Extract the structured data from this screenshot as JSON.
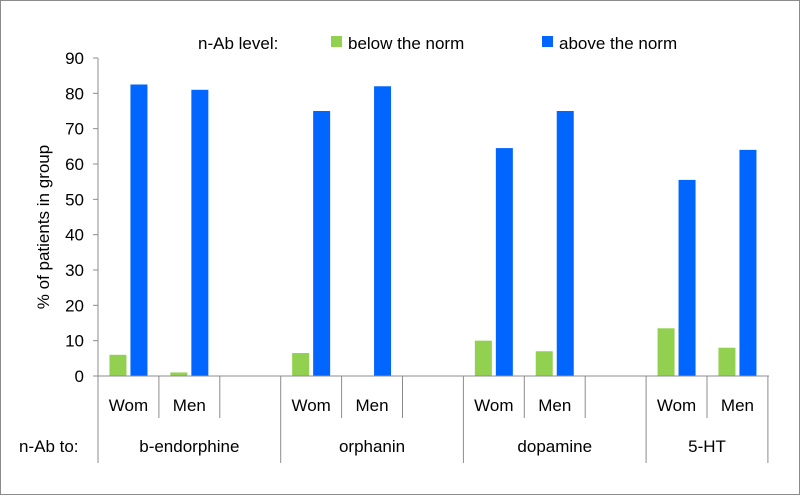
{
  "chart_data": {
    "type": "bar",
    "legend": {
      "title": "n-Ab level:",
      "placement": "top"
    },
    "ylabel": "% of patients  in   group",
    "ylim": [
      0,
      90
    ],
    "yticks": [
      0,
      10,
      20,
      30,
      40,
      50,
      60,
      70,
      80,
      90
    ],
    "grid": false,
    "group_axis_title": "n-Ab to:",
    "groups": [
      {
        "label": "b-endorphine",
        "categories": [
          "Wom",
          "Men",
          ""
        ]
      },
      {
        "label": "orphanin",
        "categories": [
          "Wom",
          "Men",
          ""
        ]
      },
      {
        "label": "dopamine",
        "categories": [
          "Wom",
          "Men",
          ""
        ]
      },
      {
        "label": "5-HT",
        "categories": [
          "Wom",
          "Men"
        ]
      }
    ],
    "series": [
      {
        "name": "below the norm",
        "color": "#92d050",
        "values": [
          6,
          1,
          null,
          6.5,
          0,
          null,
          10,
          7,
          null,
          13.5,
          8
        ]
      },
      {
        "name": "above the norm",
        "color": "#0066ff",
        "values": [
          82.5,
          81,
          null,
          75,
          82,
          null,
          64.5,
          75,
          null,
          55.5,
          64
        ]
      }
    ]
  }
}
